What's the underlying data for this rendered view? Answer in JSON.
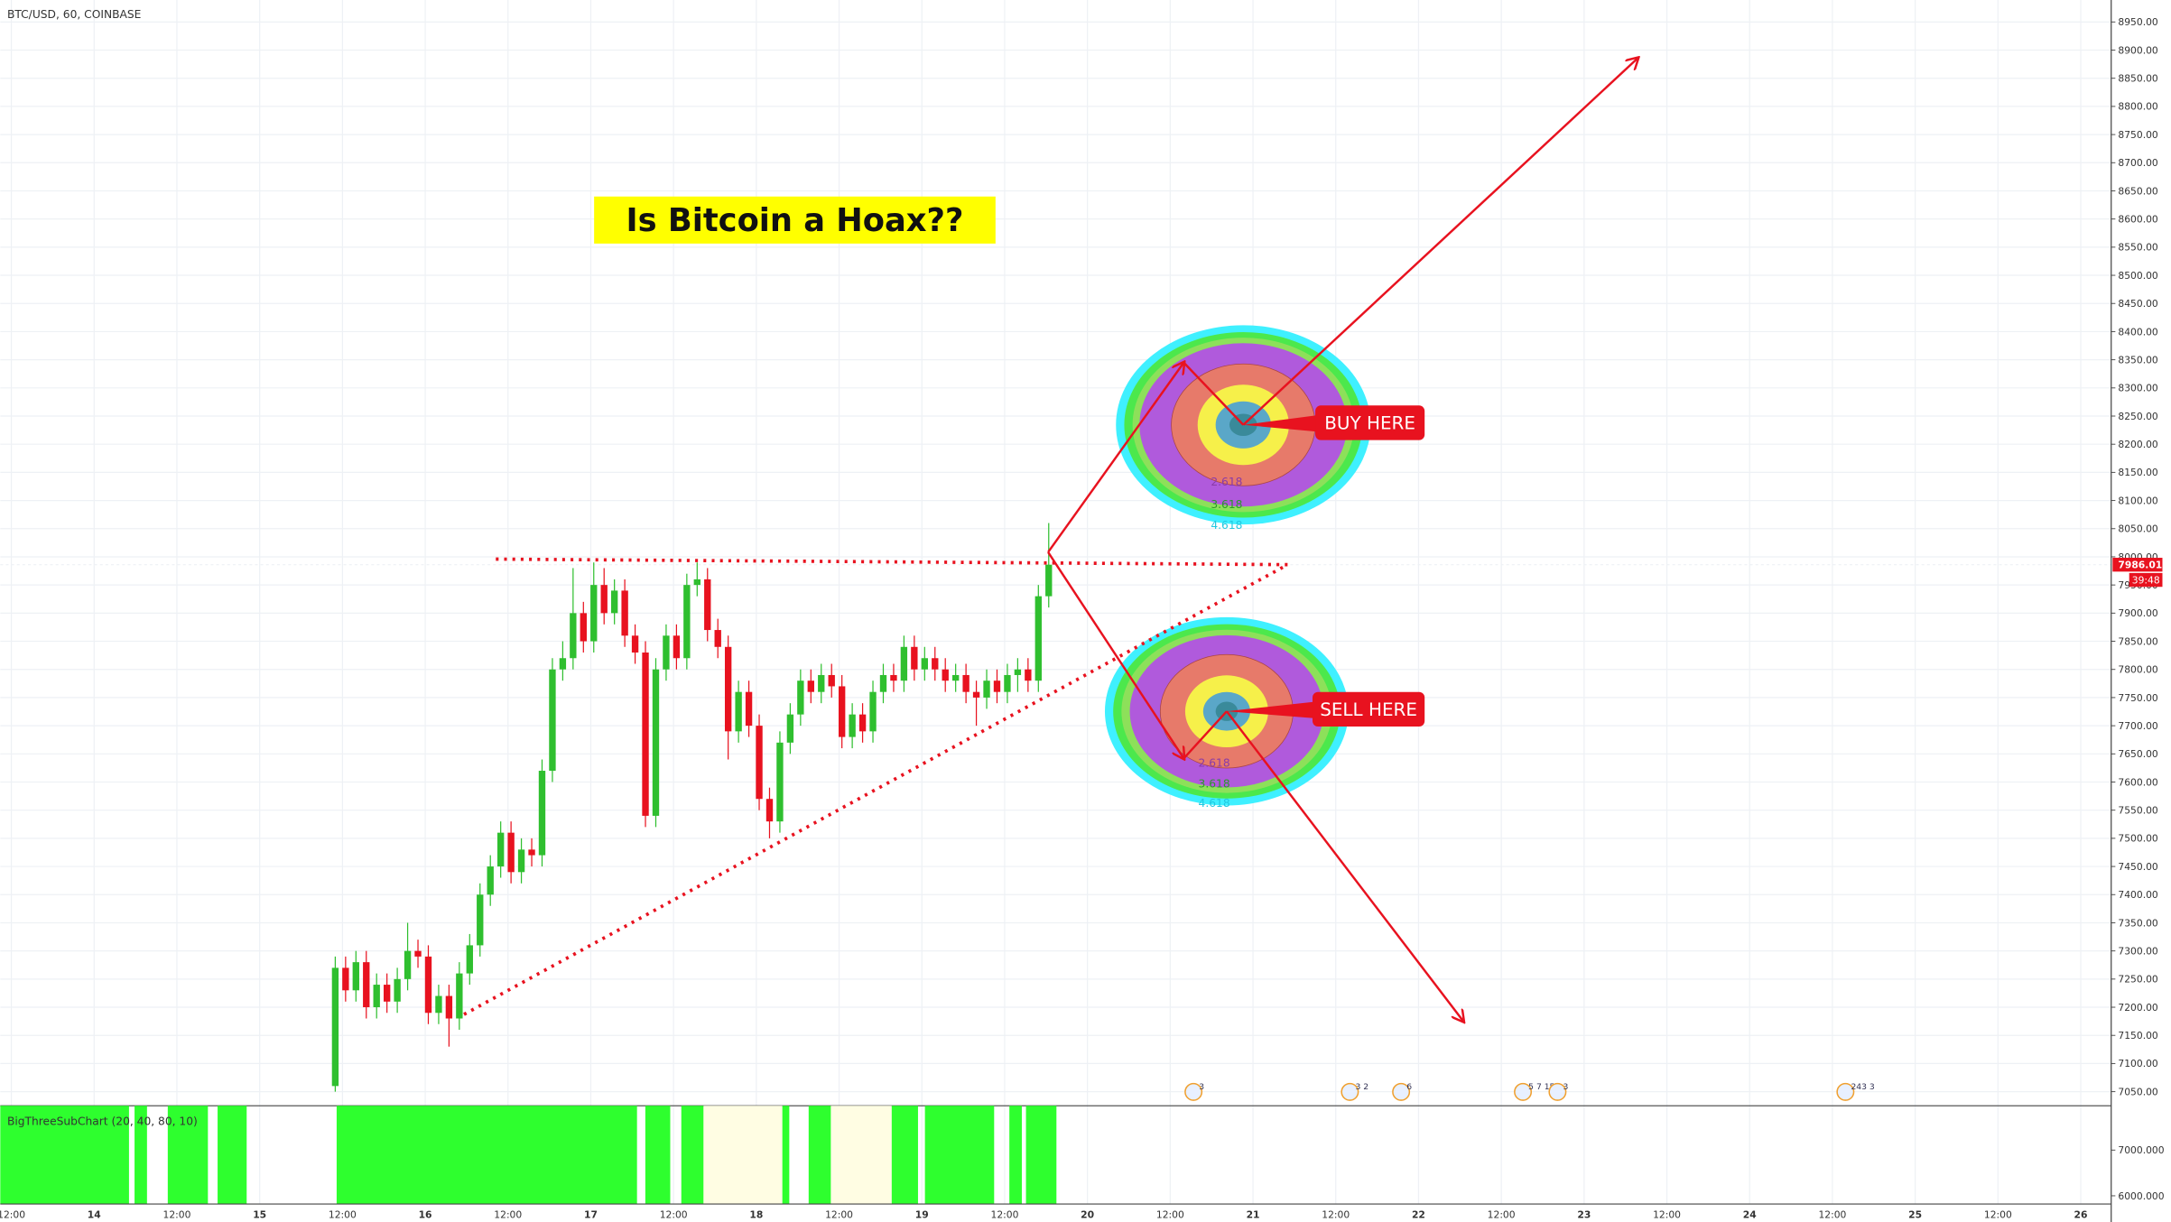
{
  "chart_data": {
    "type": "candlestick",
    "title": "BTC/USD, 60, COINBASE",
    "headline": "Is Bitcoin a Hoax??",
    "buy_label": "BUY HERE",
    "sell_label": "SELL HERE",
    "fib_labels": [
      "2.618",
      "3.618",
      "4.618"
    ],
    "indicator": "BigThreeSubChart (20, 40, 80, 10)",
    "last_price": 7986.01,
    "last_price_label": "7986.01",
    "countdown": "39:48",
    "up_color": "#2fbf2f",
    "down_color": "#e8121f",
    "xtick_labels": [
      "12:00",
      "14",
      "12:00",
      "15",
      "12:00",
      "16",
      "12:00",
      "17",
      "12:00",
      "18",
      "12:00",
      "19",
      "12:00",
      "20",
      "12:00",
      "21",
      "12:00",
      "22",
      "12:00",
      "23",
      "12:00",
      "24",
      "12:00",
      "25",
      "12:00",
      "26"
    ],
    "events": [
      "3",
      "3 2",
      "6",
      "5 7 15",
      "3",
      "243 3"
    ],
    "ylim": [
      7025,
      8989
    ],
    "yticks": [
      {
        "value": 8950,
        "label": "8950.00"
      },
      {
        "value": 8900,
        "label": "8900.00"
      },
      {
        "value": 8850,
        "label": "8850.00"
      },
      {
        "value": 8800,
        "label": "8800.00"
      },
      {
        "value": 8750,
        "label": "8750.00"
      },
      {
        "value": 8700,
        "label": "8700.00"
      },
      {
        "value": 8650,
        "label": "8650.00"
      },
      {
        "value": 8600,
        "label": "8600.00"
      },
      {
        "value": 8550,
        "label": "8550.00"
      },
      {
        "value": 8500,
        "label": "8500.00"
      },
      {
        "value": 8450,
        "label": "8450.00"
      },
      {
        "value": 8400,
        "label": "8400.00"
      },
      {
        "value": 8350,
        "label": "8350.00"
      },
      {
        "value": 8300,
        "label": "8300.00"
      },
      {
        "value": 8250,
        "label": "8250.00"
      },
      {
        "value": 8200,
        "label": "8200.00"
      },
      {
        "value": 8150,
        "label": "8150.00"
      },
      {
        "value": 8100,
        "label": "8100.00"
      },
      {
        "value": 8050,
        "label": "8050.00"
      },
      {
        "value": 8000,
        "label": "8000.00"
      },
      {
        "value": 7950,
        "label": "7950.00"
      },
      {
        "value": 7900,
        "label": "7900.00"
      },
      {
        "value": 7850,
        "label": "7850.00"
      },
      {
        "value": 7800,
        "label": "7800.00"
      },
      {
        "value": 7750,
        "label": "7750.00"
      },
      {
        "value": 7700,
        "label": "7700.00"
      },
      {
        "value": 7650,
        "label": "7650.00"
      },
      {
        "value": 7600,
        "label": "7600.00"
      },
      {
        "value": 7550,
        "label": "7550.00"
      },
      {
        "value": 7500,
        "label": "7500.00"
      },
      {
        "value": 7450,
        "label": "7450.00"
      },
      {
        "value": 7400,
        "label": "7400.00"
      },
      {
        "value": 7350,
        "label": "7350.00"
      },
      {
        "value": 7300,
        "label": "7300.00"
      },
      {
        "value": 7250,
        "label": "7250.00"
      },
      {
        "value": 7200,
        "label": "7200.00"
      },
      {
        "value": 7150,
        "label": "7150.00"
      },
      {
        "value": 7100,
        "label": "7100.00"
      },
      {
        "value": 7050,
        "label": "7050.00"
      }
    ],
    "sub_ylim": [
      5820,
      7970
    ],
    "sub_yticks": [
      {
        "value": 7000,
        "label": "7000.000"
      },
      {
        "value": 6000,
        "label": "6000.000"
      }
    ],
    "open": [
      7060,
      7270,
      7230,
      7280,
      7200,
      7240,
      7210,
      7250,
      7300,
      7290,
      7190,
      7220,
      7180,
      7260,
      7310,
      7400,
      7450,
      7510,
      7440,
      7480,
      7470,
      7620,
      7800,
      7820,
      7900,
      7850,
      7950,
      7900,
      7940,
      7860,
      7830,
      7540,
      7800,
      7860,
      7820,
      7950,
      7960,
      7870,
      7840,
      7690,
      7760,
      7700,
      7570,
      7530,
      7670,
      7720,
      7780,
      7760,
      7790,
      7770,
      7680,
      7720,
      7690,
      7760,
      7790,
      7780,
      7840,
      7800,
      7820,
      7800,
      7780,
      7790,
      7760,
      7750,
      7780,
      7760,
      7790,
      7800,
      7780,
      7930
    ],
    "high": [
      7290,
      7290,
      7300,
      7300,
      7260,
      7260,
      7270,
      7350,
      7320,
      7310,
      7240,
      7240,
      7280,
      7330,
      7420,
      7470,
      7530,
      7530,
      7500,
      7500,
      7640,
      7820,
      7850,
      7980,
      7920,
      7990,
      7980,
      7960,
      7960,
      7880,
      7850,
      7820,
      7880,
      7880,
      7970,
      7990,
      7980,
      7890,
      7860,
      7780,
      7780,
      7720,
      7590,
      7690,
      7740,
      7800,
      7800,
      7810,
      7810,
      7790,
      7740,
      7740,
      7780,
      7810,
      7810,
      7860,
      7860,
      7840,
      7840,
      7820,
      7810,
      7810,
      7780,
      7800,
      7800,
      7810,
      7820,
      7820,
      7950,
      8060
    ],
    "low": [
      7050,
      7210,
      7210,
      7180,
      7180,
      7190,
      7190,
      7230,
      7270,
      7170,
      7170,
      7130,
      7160,
      7240,
      7290,
      7380,
      7430,
      7420,
      7420,
      7450,
      7450,
      7600,
      7780,
      7800,
      7830,
      7830,
      7880,
      7880,
      7840,
      7810,
      7520,
      7520,
      7780,
      7800,
      7800,
      7930,
      7850,
      7820,
      7640,
      7670,
      7680,
      7550,
      7500,
      7510,
      7650,
      7700,
      7740,
      7740,
      7750,
      7660,
      7660,
      7670,
      7670,
      7740,
      7760,
      7760,
      7780,
      7780,
      7780,
      7760,
      7760,
      7740,
      7700,
      7730,
      7740,
      7740,
      7760,
      7760,
      7760,
      7910
    ],
    "close": [
      7270,
      7230,
      7280,
      7200,
      7240,
      7210,
      7250,
      7300,
      7290,
      7190,
      7220,
      7180,
      7260,
      7310,
      7400,
      7450,
      7510,
      7440,
      7480,
      7470,
      7620,
      7800,
      7820,
      7900,
      7850,
      7950,
      7900,
      7940,
      7860,
      7830,
      7540,
      7800,
      7860,
      7820,
      7950,
      7960,
      7870,
      7840,
      7690,
      7760,
      7700,
      7570,
      7530,
      7670,
      7720,
      7780,
      7760,
      7790,
      7770,
      7680,
      7720,
      7690,
      7760,
      7790,
      7780,
      7840,
      7800,
      7820,
      7800,
      7780,
      7790,
      7760,
      7750,
      7780,
      7760,
      7790,
      7800,
      7780,
      7930,
      7986
    ]
  }
}
